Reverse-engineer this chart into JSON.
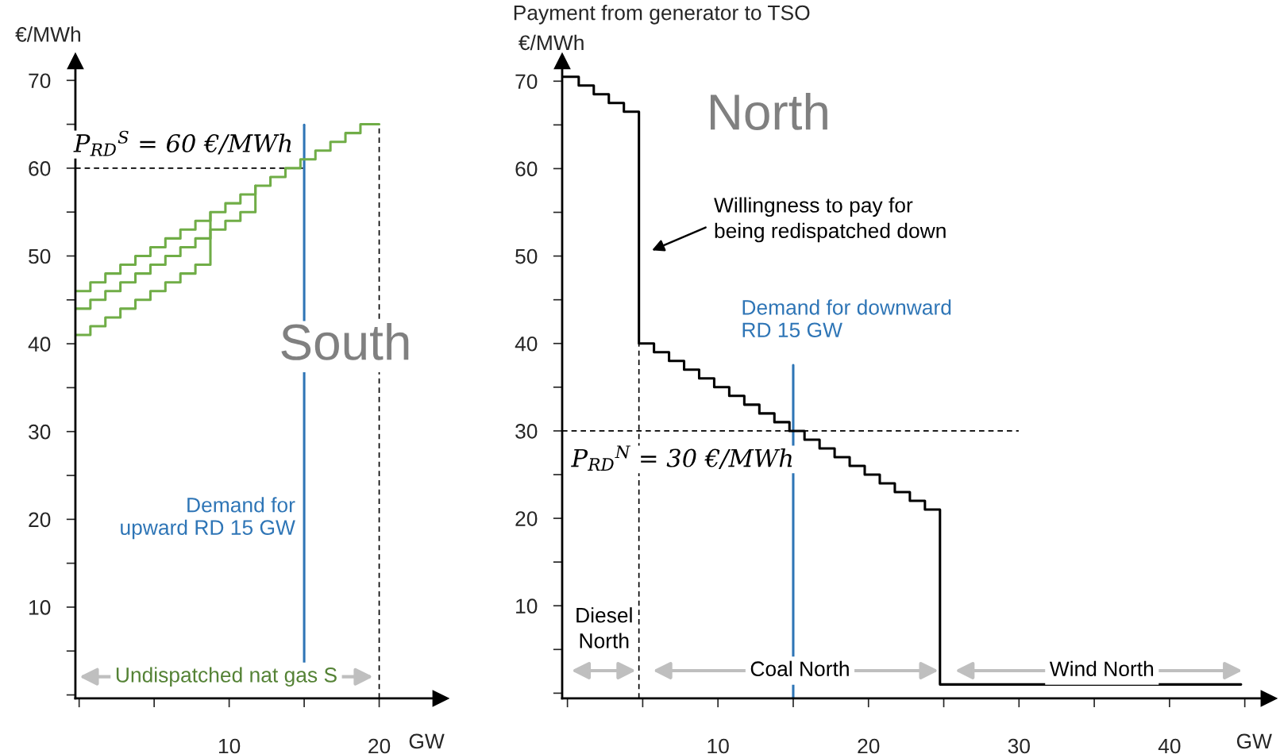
{
  "chart_data": [
    {
      "type": "step",
      "ylabel": "€/MWh",
      "xlabel": "GW",
      "series": [
        {
          "color": "#70ad47",
          "x": [
            -0.25,
            0.75,
            1.75,
            2.75,
            3.75,
            4.75,
            5.75,
            6.75,
            7.75,
            8.75,
            9.75,
            10.75,
            11.75,
            12.75,
            13.75,
            14.75,
            15.75,
            16.75,
            17.75,
            18.75,
            20
          ],
          "values": [
            46,
            47,
            48,
            49,
            50,
            51,
            52,
            53,
            54,
            55,
            56,
            57,
            58,
            59,
            60,
            61,
            62,
            63,
            64,
            65,
            65
          ]
        },
        {
          "color": "#70ad47",
          "x": [
            -0.25,
            0.75,
            1.75,
            2.75,
            3.75,
            4.75,
            5.75,
            6.75,
            7.75,
            8.75,
            9.75,
            10.75,
            11.75
          ],
          "values": [
            44,
            45,
            46,
            47,
            48,
            49,
            50,
            51,
            52,
            53,
            54,
            55,
            58
          ]
        },
        {
          "color": "#70ad47",
          "x": [
            -0.25,
            0.75,
            1.75,
            2.75,
            3.75,
            4.75,
            5.75,
            6.75,
            7.75,
            8.75
          ],
          "values": [
            41,
            42,
            43,
            44,
            45,
            46,
            47,
            48,
            49,
            55
          ]
        }
      ],
      "xlim": [
        -0.25,
        24.1
      ],
      "ylim": [
        -0.4,
        72.2
      ],
      "xticks": [
        {
          "value": 0,
          "label": null
        },
        {
          "value": 5,
          "label": null
        },
        10,
        {
          "value": 15,
          "label": null
        },
        20
      ],
      "yticks": [
        {
          "value": 0,
          "label": null
        },
        {
          "value": 5,
          "label": null
        },
        10,
        {
          "value": 15,
          "label": null
        },
        20,
        {
          "value": 25,
          "label": null
        },
        30,
        {
          "value": 35,
          "label": null
        },
        40,
        {
          "value": 45,
          "label": null
        },
        50,
        {
          "value": 55,
          "label": null
        },
        60,
        {
          "value": 65,
          "label": null
        },
        70
      ],
      "ref_lines": [
        {
          "axis": "y",
          "value": 60,
          "label": "P$_{RD}$$^{S}$ = 60 €/MWh",
          "color": "#000000",
          "line_style": "dashed"
        },
        {
          "axis": "x",
          "value": 15,
          "label": "Demand for\nupward RD 15 GW",
          "color": "#2e75b6",
          "line_style": "solid"
        },
        {
          "axis": "x",
          "value": 20,
          "color": "#000000",
          "line_style": "dashed"
        }
      ],
      "annotations": [
        "South",
        "Undispatched nat gas S"
      ],
      "grid": false
    },
    {
      "type": "step",
      "title": "Payment from generator to TSO",
      "ylabel": "€/MWh",
      "xlabel": "GW",
      "series": [
        {
          "color": "#000000",
          "x": [
            -0.35,
            0.75,
            1.75,
            2.75,
            3.75,
            4.75,
            5.75,
            6.75,
            7.75,
            8.75,
            9.75,
            10.75,
            11.75,
            12.75,
            13.75,
            14.75,
            15.75,
            16.75,
            17.75,
            18.75,
            19.75,
            20.75,
            21.75,
            22.75,
            23.75,
            24.75,
            44.75
          ],
          "values": [
            70.5,
            69.5,
            68.5,
            67.5,
            66.5,
            40,
            39,
            38,
            37,
            36,
            35,
            34,
            33,
            32,
            31,
            30,
            29,
            28,
            27,
            26,
            25,
            24,
            23,
            22,
            21,
            1,
            1
          ]
        }
      ],
      "xlim": [
        -0.35,
        46.6
      ],
      "ylim": [
        -0.6,
        72.3
      ],
      "xticks": [
        {
          "value": 0,
          "label": null
        },
        {
          "value": 5,
          "label": null
        },
        10,
        {
          "value": 15,
          "label": null
        },
        20,
        {
          "value": 25,
          "label": null
        },
        30,
        {
          "value": 35,
          "label": null
        },
        40,
        {
          "value": 45,
          "label": null
        }
      ],
      "yticks": [
        {
          "value": 0,
          "label": null
        },
        {
          "value": 5,
          "label": null
        },
        10,
        {
          "value": 15,
          "label": null
        },
        20,
        {
          "value": 25,
          "label": null
        },
        30,
        {
          "value": 35,
          "label": null
        },
        40,
        {
          "value": 45,
          "label": null
        },
        50,
        {
          "value": 55,
          "label": null
        },
        60,
        {
          "value": 65,
          "label": null
        },
        70
      ],
      "ref_lines": [
        {
          "axis": "y",
          "value": 30,
          "label": "P$_{RD}$$^{N}$ = 30 €/MWh",
          "color": "#000000",
          "line_style": "dashed"
        },
        {
          "axis": "x",
          "value": 4.75,
          "color": "#000000",
          "line_style": "dashed"
        },
        {
          "axis": "x",
          "value": 15,
          "label": "Demand for downward\nRD 15 GW",
          "color": "#2e75b6",
          "line_style": "solid"
        }
      ],
      "annotations": [
        "North",
        "Willingness to pay for\nbeing redispatched down",
        "Diesel\nNorth",
        "Coal North",
        "Wind North"
      ],
      "grid": false
    }
  ]
}
